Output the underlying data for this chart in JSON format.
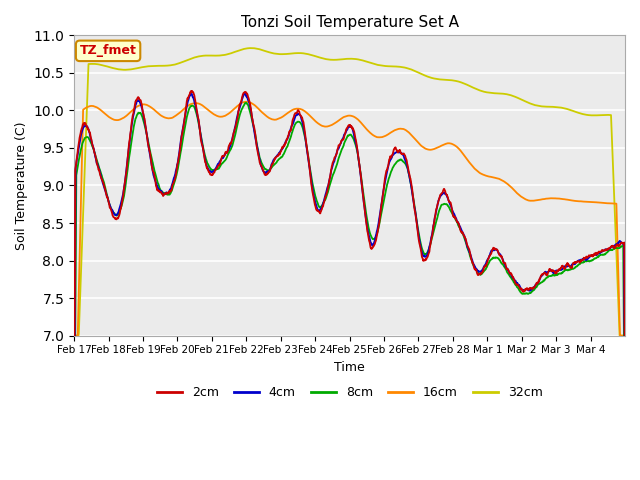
{
  "title": "Tonzi Soil Temperature Set A",
  "xlabel": "Time",
  "ylabel": "Soil Temperature (C)",
  "ylim": [
    7.0,
    11.0
  ],
  "yticks": [
    7.0,
    7.5,
    8.0,
    8.5,
    9.0,
    9.5,
    10.0,
    10.5,
    11.0
  ],
  "xtick_labels": [
    "Feb 17",
    "Feb 18",
    "Feb 19",
    "Feb 20",
    "Feb 21",
    "Feb 22",
    "Feb 23",
    "Feb 24",
    "Feb 25",
    "Feb 26",
    "Feb 27",
    "Feb 28",
    "Mar 1",
    "Mar 2",
    "Mar 3",
    "Mar 4"
  ],
  "colors": {
    "2cm": "#cc0000",
    "4cm": "#0000cc",
    "8cm": "#00aa00",
    "16cm": "#ff8800",
    "32cm": "#cccc00"
  },
  "legend_label": "TZ_fmet",
  "legend_bg": "#ffffcc",
  "legend_border": "#cc8800",
  "legend_text_color": "#cc0000",
  "plot_bg": "#ebebeb"
}
